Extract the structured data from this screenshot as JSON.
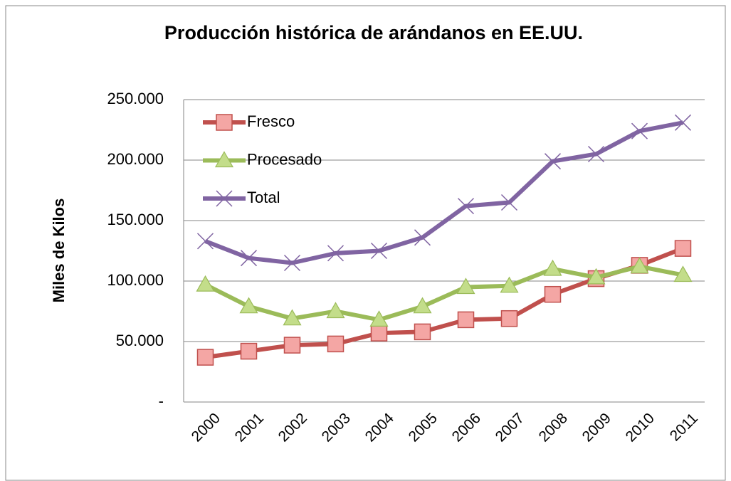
{
  "chart_data": {
    "type": "line",
    "title": "Producción histórica de arándanos en EE.UU.",
    "y_label": "Miles de Kilos",
    "categories": [
      "2000",
      "2001",
      "2002",
      "2003",
      "2004",
      "2005",
      "2006",
      "2007",
      "2008",
      "2009",
      "2010",
      "2011"
    ],
    "series": [
      {
        "name": "Fresco",
        "color": "#c0504d",
        "values": [
          37000,
          42000,
          47000,
          48000,
          57000,
          58000,
          68000,
          69000,
          89000,
          102000,
          113000,
          127000
        ]
      },
      {
        "name": "Procesado",
        "color": "#9bbb59",
        "values": [
          97000,
          79000,
          69000,
          75000,
          68000,
          79000,
          95000,
          96000,
          110000,
          103000,
          112000,
          105000
        ]
      },
      {
        "name": "Total",
        "color": "#8064a2",
        "values": [
          133000,
          119000,
          115000,
          123000,
          125000,
          136000,
          162000,
          165000,
          199000,
          205000,
          224000,
          231000
        ]
      }
    ],
    "ylim": [
      0,
      250000
    ],
    "yticks": [
      {
        "value": 0,
        "label": "-"
      },
      {
        "value": 50000,
        "label": "50.000"
      },
      {
        "value": 100000,
        "label": "100.000"
      },
      {
        "value": 150000,
        "label": "150.000"
      },
      {
        "value": 200000,
        "label": "200.000"
      },
      {
        "value": 250000,
        "label": "250.000"
      }
    ],
    "grid": true,
    "legend": "top-left"
  }
}
